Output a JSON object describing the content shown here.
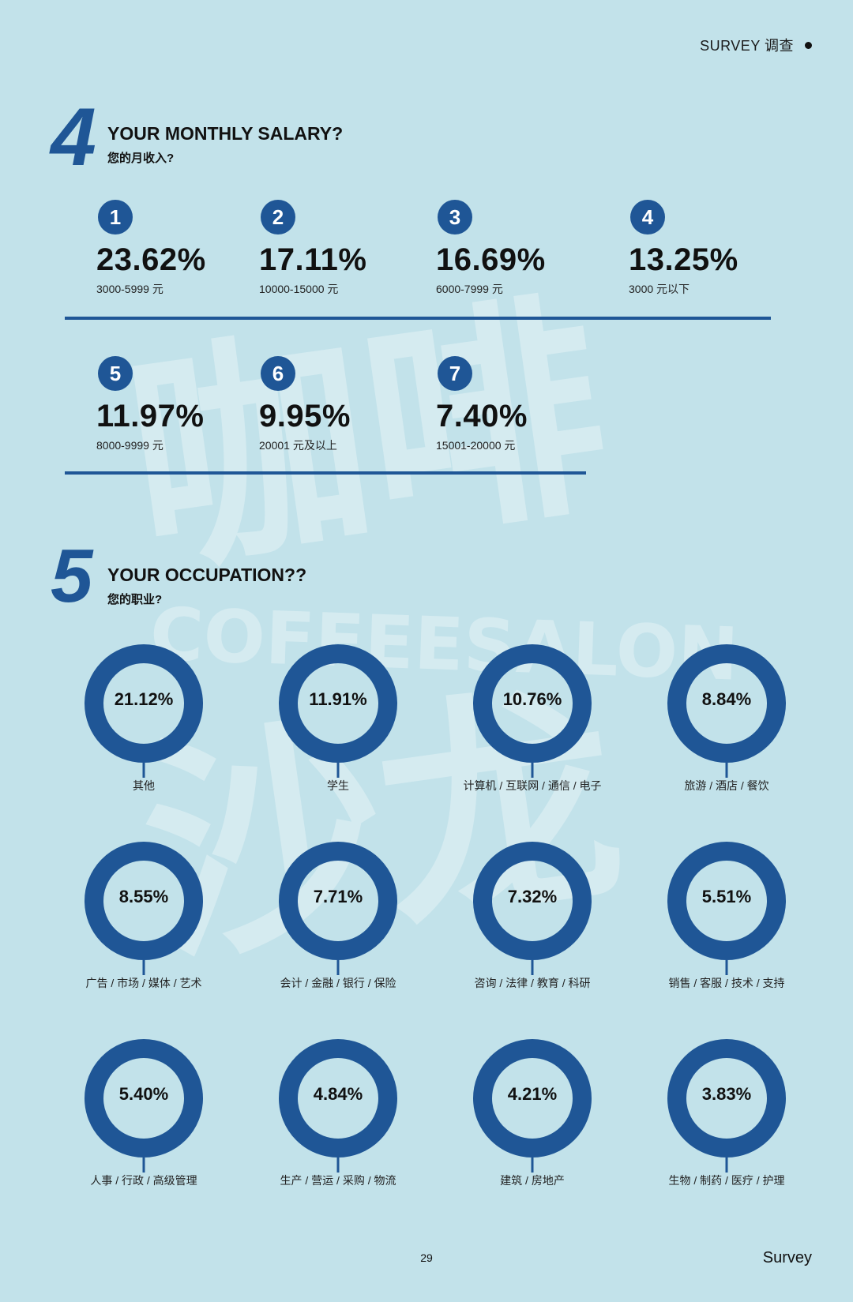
{
  "header": {
    "text": "SURVEY 调查"
  },
  "salary_section": {
    "number": "4",
    "title_en": "YOUR MONTHLY SALARY?",
    "title_zh": "您的月收入?",
    "items": [
      {
        "rank": "1",
        "percent": "23.62%",
        "range": "3000-5999 元"
      },
      {
        "rank": "2",
        "percent": "17.11%",
        "range": "10000-15000 元"
      },
      {
        "rank": "3",
        "percent": "16.69%",
        "range": "6000-7999 元"
      },
      {
        "rank": "4",
        "percent": "13.25%",
        "range": "3000 元以下"
      },
      {
        "rank": "5",
        "percent": "11.97%",
        "range": "8000-9999 元"
      },
      {
        "rank": "6",
        "percent": "9.95%",
        "range": "20001 元及以上"
      },
      {
        "rank": "7",
        "percent": "7.40%",
        "range": "15001-20000 元"
      }
    ]
  },
  "occupation_section": {
    "number": "5",
    "title_en": "YOUR OCCUPATION??",
    "title_zh": "您的职业?",
    "items": [
      {
        "percent": "21.12%",
        "label": "其他"
      },
      {
        "percent": "11.91%",
        "label": "学生"
      },
      {
        "percent": "10.76%",
        "label": "计算机 / 互联网 / 通信 / 电子"
      },
      {
        "percent": "8.84%",
        "label": "旅游 / 酒店 / 餐饮"
      },
      {
        "percent": "8.55%",
        "label": "广告 / 市场 / 媒体 / 艺术"
      },
      {
        "percent": "7.71%",
        "label": "会计 / 金融 / 银行 / 保险"
      },
      {
        "percent": "7.32%",
        "label": "咨询 / 法律 / 教育 / 科研"
      },
      {
        "percent": "5.51%",
        "label": "销售 / 客服 / 技术 / 支持"
      },
      {
        "percent": "5.40%",
        "label": "人事 / 行政 / 高级管理"
      },
      {
        "percent": "4.84%",
        "label": "生产 / 营运 / 采购 / 物流"
      },
      {
        "percent": "4.21%",
        "label": "建筑 / 房地产"
      },
      {
        "percent": "3.83%",
        "label": "生物 / 制药 / 医疗 / 护理"
      }
    ]
  },
  "watermark": {
    "text_zh": "咖啡沙龙",
    "text_en": "COFFEESALON"
  },
  "footer": {
    "page_number": "29",
    "word": "Survey"
  },
  "colors": {
    "background": "#c2e2ea",
    "accent": "#1f5696"
  }
}
